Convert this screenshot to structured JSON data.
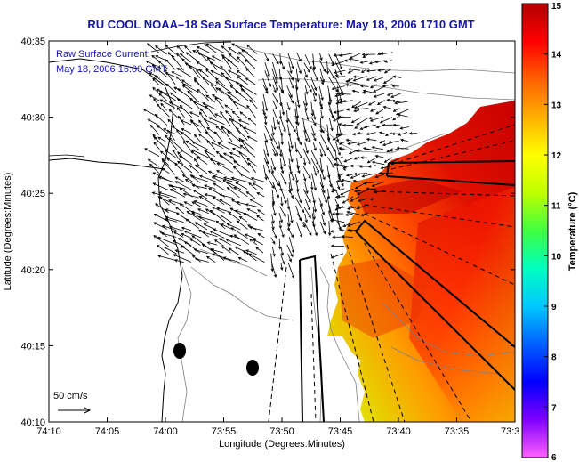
{
  "title": "RU COOL  NOAA–18  Sea Surface Temperature:  May 18, 2006 1710 GMT",
  "inset": {
    "line1": "Raw Surface Current:",
    "line2": "May 18, 2006 16:00 GMT"
  },
  "scale_label": "50 cm/s",
  "x_axis": {
    "label": "Longitude (Degrees:Minutes)",
    "ticks": [
      "74:10",
      "74:05",
      "74:00",
      "73:55",
      "73:50",
      "73:45",
      "73:40",
      "73:35",
      "73:3"
    ]
  },
  "y_axis": {
    "label": "Latitude (Degrees:Minutes)",
    "ticks": [
      "40:35",
      "40:30",
      "40:25",
      "40:20",
      "40:15",
      "40:10"
    ]
  },
  "colorbar": {
    "label": "Temperature (°C)",
    "ticks": [
      "15",
      "14",
      "13",
      "12",
      "11",
      "10",
      "9",
      "8",
      "7",
      "6"
    ],
    "min": 6,
    "max": 15,
    "stops": [
      "#ff60ff",
      "#8000ff",
      "#0000ff",
      "#0060ff",
      "#00c8ff",
      "#00ffc0",
      "#40ff40",
      "#c0ff00",
      "#ffff00",
      "#ffb000",
      "#ff6000",
      "#ff0000",
      "#b00000"
    ]
  },
  "colors": {
    "title": "#1515a8",
    "sst_warm": "#d40000",
    "sst_mid": "#ff5a00",
    "sst_cool": "#f0e000"
  }
}
